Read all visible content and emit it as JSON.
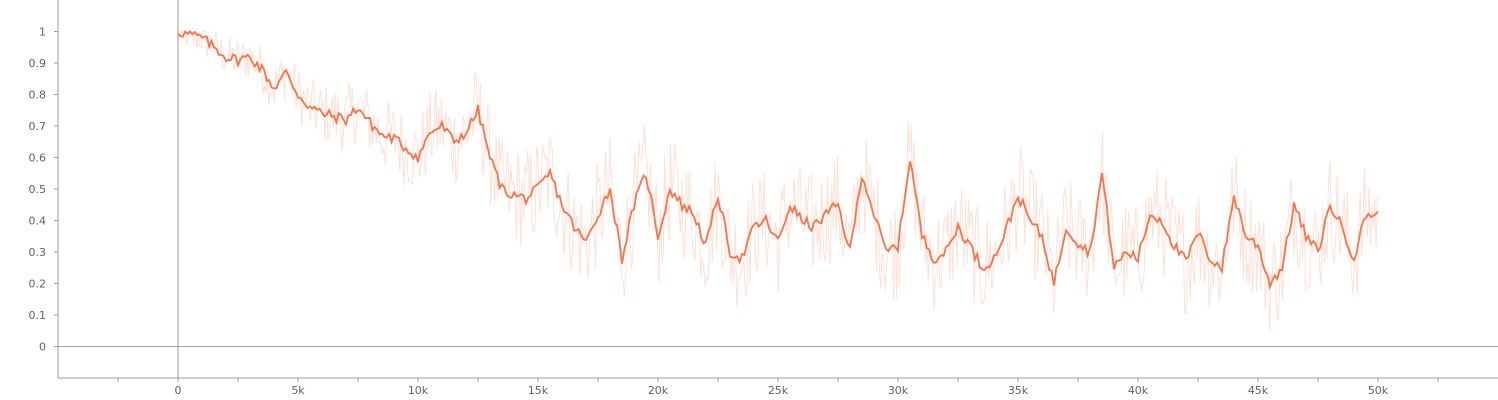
{
  "chart_data": {
    "type": "line",
    "title": "",
    "xlabel": "",
    "ylabel": "",
    "xlim": [
      -5000,
      55000
    ],
    "ylim": [
      -0.1,
      1.1
    ],
    "grid": false,
    "legend": "none",
    "x_ticks": [
      {
        "value": 0,
        "label": "0"
      },
      {
        "value": 5000,
        "label": "5k"
      },
      {
        "value": 10000,
        "label": "10k"
      },
      {
        "value": 15000,
        "label": "15k"
      },
      {
        "value": 20000,
        "label": "20k"
      },
      {
        "value": 25000,
        "label": "25k"
      },
      {
        "value": 30000,
        "label": "30k"
      },
      {
        "value": 35000,
        "label": "35k"
      },
      {
        "value": 40000,
        "label": "40k"
      },
      {
        "value": 45000,
        "label": "45k"
      },
      {
        "value": 50000,
        "label": "50k"
      }
    ],
    "y_ticks": [
      {
        "value": 0,
        "label": "0"
      },
      {
        "value": 0.1,
        "label": "0.1"
      },
      {
        "value": 0.2,
        "label": "0.2"
      },
      {
        "value": 0.3,
        "label": "0.3"
      },
      {
        "value": 0.4,
        "label": "0.4"
      },
      {
        "value": 0.5,
        "label": "0.5"
      },
      {
        "value": 0.6,
        "label": "0.6"
      },
      {
        "value": 0.7,
        "label": "0.7"
      },
      {
        "value": 0.8,
        "label": "0.8"
      },
      {
        "value": 0.9,
        "label": "0.9"
      },
      {
        "value": 1,
        "label": "1"
      }
    ],
    "series": [
      {
        "color": "#ff7043",
        "style": "smoothed",
        "x": [
          0,
          500,
          1000,
          1500,
          2000,
          2500,
          3000,
          3500,
          4000,
          4500,
          5000,
          5500,
          6000,
          6500,
          7000,
          7500,
          8000,
          8500,
          9000,
          9500,
          10000,
          10500,
          11000,
          11500,
          12000,
          12500,
          13000,
          13500,
          14000,
          14500,
          15000,
          15500,
          16000,
          16500,
          17000,
          17500,
          18000,
          18500,
          19000,
          19500,
          20000,
          20500,
          21000,
          21500,
          22000,
          22500,
          23000,
          23500,
          24000,
          24500,
          25000,
          25500,
          26000,
          26500,
          27000,
          27500,
          28000,
          28500,
          29000,
          29500,
          30000,
          30500,
          31000,
          31500,
          32000,
          32500,
          33000,
          33500,
          34000,
          34500,
          35000,
          35500,
          36000,
          36500,
          37000,
          37500,
          38000,
          38500,
          39000,
          39500,
          40000,
          40500,
          41000,
          41500,
          42000,
          42500,
          43000,
          43500,
          44000,
          44500,
          45000,
          45500,
          46000,
          46500,
          47000,
          47500,
          48000,
          48500,
          49000,
          49500,
          50000
        ],
        "y": [
          1.0,
          0.99,
          0.98,
          0.95,
          0.92,
          0.91,
          0.92,
          0.88,
          0.82,
          0.87,
          0.8,
          0.76,
          0.74,
          0.73,
          0.72,
          0.76,
          0.71,
          0.67,
          0.66,
          0.63,
          0.6,
          0.68,
          0.7,
          0.65,
          0.68,
          0.75,
          0.6,
          0.5,
          0.48,
          0.47,
          0.5,
          0.55,
          0.45,
          0.38,
          0.33,
          0.42,
          0.5,
          0.28,
          0.45,
          0.55,
          0.35,
          0.5,
          0.45,
          0.42,
          0.32,
          0.48,
          0.3,
          0.28,
          0.38,
          0.4,
          0.33,
          0.45,
          0.4,
          0.38,
          0.42,
          0.45,
          0.3,
          0.55,
          0.42,
          0.3,
          0.32,
          0.6,
          0.35,
          0.28,
          0.3,
          0.38,
          0.32,
          0.25,
          0.28,
          0.37,
          0.48,
          0.4,
          0.35,
          0.2,
          0.38,
          0.33,
          0.3,
          0.55,
          0.25,
          0.3,
          0.28,
          0.42,
          0.4,
          0.32,
          0.27,
          0.36,
          0.28,
          0.25,
          0.48,
          0.35,
          0.32,
          0.2,
          0.25,
          0.45,
          0.35,
          0.3,
          0.45,
          0.38,
          0.28,
          0.42,
          0.42
        ]
      }
    ]
  }
}
